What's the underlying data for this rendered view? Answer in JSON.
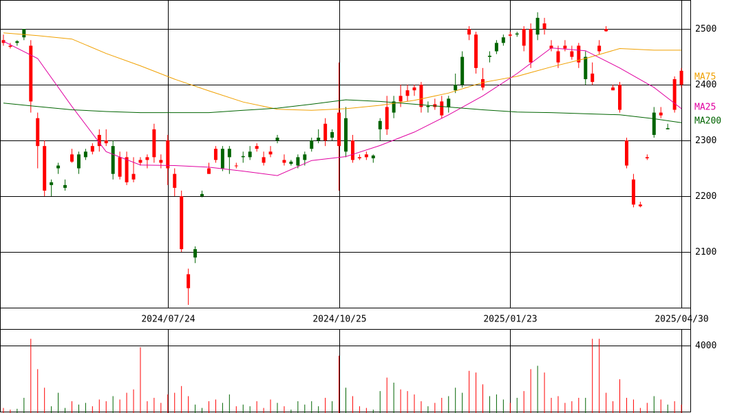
{
  "chart_data": {
    "type": "candlestick",
    "up_color": "#006400",
    "down_color": "#ff0000",
    "xlim": [
      -0.5,
      100.3
    ],
    "xticks": [
      {
        "value": 24,
        "label": "2024/07/24"
      },
      {
        "value": 49,
        "label": "2024/10/25"
      },
      {
        "value": 74,
        "label": "2025/01/23"
      },
      {
        "value": 99,
        "label": "2025/04/30"
      }
    ],
    "ylim": [
      2000,
      2552
    ],
    "yticks": [
      2100,
      2200,
      2300,
      2400,
      2500
    ],
    "volume_ylim": [
      0,
      4980
    ],
    "volume_yticks": [
      4000
    ],
    "ohlc": [
      [
        2480,
        2490,
        2470,
        2475
      ],
      [
        2470,
        2475,
        2465,
        2468
      ],
      [
        2475,
        2480,
        2470,
        2478
      ],
      [
        2485,
        2500,
        2480,
        2500
      ],
      [
        2470,
        2480,
        2350,
        2370
      ],
      [
        2340,
        2350,
        2250,
        2290
      ],
      [
        2290,
        2300,
        2200,
        2210
      ],
      [
        2220,
        2230,
        2200,
        2225
      ],
      [
        2250,
        2260,
        2240,
        2255
      ],
      [
        2215,
        2230,
        2210,
        2220
      ],
      [
        2275,
        2285,
        2260,
        2262
      ],
      [
        2250,
        2280,
        2240,
        2275
      ],
      [
        2270,
        2285,
        2265,
        2280
      ],
      [
        2290,
        2295,
        2275,
        2280
      ],
      [
        2310,
        2320,
        2280,
        2290
      ],
      [
        2300,
        2320,
        2290,
        2295
      ],
      [
        2240,
        2300,
        2230,
        2290
      ],
      [
        2270,
        2280,
        2230,
        2235
      ],
      [
        2270,
        2280,
        2220,
        2225
      ],
      [
        2240,
        2270,
        2225,
        2230
      ],
      [
        2265,
        2270,
        2255,
        2260
      ],
      [
        2270,
        2275,
        2250,
        2265
      ],
      [
        2320,
        2330,
        2260,
        2270
      ],
      [
        2265,
        2275,
        2250,
        2260
      ],
      [
        2300,
        2310,
        2220,
        2250
      ],
      [
        2240,
        2250,
        2200,
        2215
      ],
      [
        2200,
        2210,
        2100,
        2105
      ],
      [
        2060,
        2070,
        2005,
        2035
      ],
      [
        2090,
        2110,
        2080,
        2105
      ],
      [
        2200,
        2210,
        2198,
        2204
      ],
      [
        2250,
        2260,
        2240,
        2240
      ],
      [
        2285,
        2290,
        2260,
        2265
      ],
      [
        2250,
        2290,
        2245,
        2285
      ],
      [
        2270,
        2290,
        2240,
        2285
      ],
      [
        2255,
        2260,
        2250,
        2254
      ],
      [
        2270,
        2280,
        2260,
        2272
      ],
      [
        2270,
        2290,
        2265,
        2280
      ],
      [
        2290,
        2295,
        2280,
        2285
      ],
      [
        2270,
        2280,
        2255,
        2260
      ],
      [
        2280,
        2290,
        2270,
        2275
      ],
      [
        2300,
        2310,
        2295,
        2305
      ],
      [
        2265,
        2275,
        2255,
        2260
      ],
      [
        2258,
        2265,
        2255,
        2262
      ],
      [
        2255,
        2275,
        2250,
        2270
      ],
      [
        2265,
        2280,
        2255,
        2275
      ],
      [
        2285,
        2305,
        2280,
        2300
      ],
      [
        2300,
        2320,
        2295,
        2305
      ],
      [
        2330,
        2340,
        2290,
        2300
      ],
      [
        2305,
        2320,
        2300,
        2315
      ],
      [
        2350,
        2440,
        2210,
        2290
      ],
      [
        2280,
        2360,
        2270,
        2340
      ],
      [
        2300,
        2310,
        2260,
        2265
      ],
      [
        2270,
        2275,
        2265,
        2268
      ],
      [
        2275,
        2280,
        2265,
        2270
      ],
      [
        2268,
        2275,
        2260,
        2273
      ],
      [
        2320,
        2340,
        2300,
        2335
      ],
      [
        2360,
        2380,
        2310,
        2320
      ],
      [
        2350,
        2380,
        2340,
        2370
      ],
      [
        2380,
        2400,
        2360,
        2370
      ],
      [
        2390,
        2400,
        2370,
        2380
      ],
      [
        2395,
        2400,
        2380,
        2390
      ],
      [
        2400,
        2405,
        2350,
        2360
      ],
      [
        2360,
        2370,
        2350,
        2362
      ],
      [
        2365,
        2375,
        2355,
        2360
      ],
      [
        2370,
        2380,
        2340,
        2345
      ],
      [
        2360,
        2380,
        2350,
        2375
      ],
      [
        2390,
        2420,
        2385,
        2400
      ],
      [
        2400,
        2460,
        2395,
        2450
      ],
      [
        2500,
        2505,
        2480,
        2490
      ],
      [
        2490,
        2495,
        2420,
        2430
      ],
      [
        2410,
        2430,
        2390,
        2395
      ],
      [
        2450,
        2460,
        2440,
        2452
      ],
      [
        2460,
        2480,
        2455,
        2475
      ],
      [
        2475,
        2490,
        2470,
        2485
      ],
      [
        2490,
        2495,
        2485,
        2488
      ],
      [
        2490,
        2495,
        2486,
        2492
      ],
      [
        2500,
        2505,
        2460,
        2470
      ],
      [
        2500,
        2510,
        2430,
        2440
      ],
      [
        2490,
        2530,
        2480,
        2520
      ],
      [
        2510,
        2520,
        2490,
        2500
      ],
      [
        2470,
        2480,
        2460,
        2465
      ],
      [
        2460,
        2470,
        2430,
        2440
      ],
      [
        2470,
        2480,
        2460,
        2465
      ],
      [
        2460,
        2470,
        2445,
        2450
      ],
      [
        2470,
        2475,
        2430,
        2440
      ],
      [
        2410,
        2460,
        2400,
        2450
      ],
      [
        2420,
        2440,
        2400,
        2405
      ],
      [
        2470,
        2480,
        2455,
        2460
      ],
      [
        2500,
        2505,
        2495,
        2496
      ],
      [
        2395,
        2400,
        2390,
        2390
      ],
      [
        2400,
        2405,
        2350,
        2355
      ],
      [
        2300,
        2305,
        2250,
        2255
      ],
      [
        2230,
        2240,
        2180,
        2185
      ],
      [
        2185,
        2190,
        2180,
        2182
      ],
      [
        2270,
        2275,
        2265,
        2268
      ],
      [
        2310,
        2360,
        2305,
        2350
      ],
      [
        2350,
        2360,
        2340,
        2345
      ],
      [
        2320,
        2330,
        2320,
        2322
      ],
      [
        2410,
        2415,
        2350,
        2355
      ],
      [
        2425,
        2430,
        2395,
        2400
      ]
    ],
    "volumes": [
      300,
      200,
      250,
      900,
      4400,
      2600,
      1500,
      400,
      1200,
      300,
      700,
      500,
      600,
      400,
      800,
      700,
      1000,
      800,
      1200,
      1400,
      3900,
      700,
      900,
      600,
      1100,
      1200,
      1600,
      1000,
      500,
      300,
      700,
      800,
      600,
      1100,
      400,
      500,
      400,
      700,
      300,
      800,
      600,
      400,
      200,
      700,
      500,
      700,
      400,
      900,
      700,
      3400,
      1500,
      1000,
      400,
      300,
      200,
      1300,
      2100,
      1800,
      1400,
      1300,
      1100,
      700,
      400,
      600,
      900,
      1000,
      1500,
      1200,
      2500,
      2400,
      1700,
      1000,
      1100,
      800,
      600,
      900,
      1300,
      2600,
      2800,
      2400,
      900,
      1000,
      600,
      700,
      900,
      900,
      4400,
      4400,
      1200,
      700,
      2000,
      900,
      800,
      300,
      600,
      1000,
      800,
      500,
      700,
      500
    ],
    "ma_x": [
      0,
      5,
      10,
      15,
      20,
      25,
      30,
      35,
      40,
      45,
      50,
      55,
      60,
      65,
      70,
      75,
      80,
      85,
      90,
      95,
      99
    ],
    "series": [
      {
        "name": "MA75",
        "color": "#f0a000",
        "values": [
          2493,
          2488,
          2482,
          2456,
          2434,
          2410,
          2389,
          2369,
          2356,
          2354,
          2357,
          2363,
          2372,
          2385,
          2404,
          2415,
          2432,
          2447,
          2465,
          2462,
          2462
        ]
      },
      {
        "name": "MA25",
        "color": "#e000a0",
        "values": [
          2478,
          2447,
          2361,
          2280,
          2256,
          2255,
          2252,
          2245,
          2237,
          2264,
          2271,
          2291,
          2315,
          2346,
          2380,
          2420,
          2466,
          2461,
          2430,
          2395,
          2357
        ]
      },
      {
        "name": "MA200",
        "color": "#006400",
        "values": [
          2367,
          2361,
          2355,
          2352,
          2350,
          2350,
          2350,
          2354,
          2358,
          2365,
          2373,
          2370,
          2365,
          2360,
          2355,
          2351,
          2350,
          2348,
          2346,
          2339,
          2332
        ]
      }
    ]
  }
}
